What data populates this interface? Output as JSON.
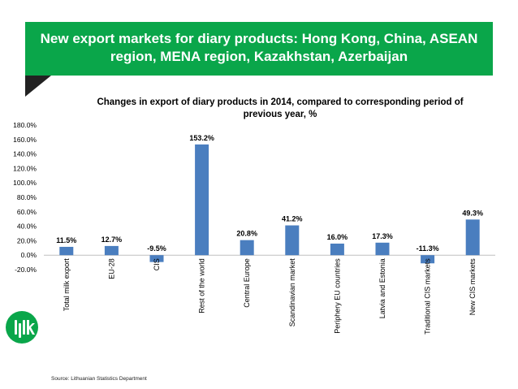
{
  "slide": {
    "title": "New export markets for diary products: Hong Kong, China, ASEAN region, MENA region, Kazakhstan, Azerbaijan",
    "source": "Source: Lithuanian Statistics Department",
    "logo_icon": "lpk-logo-icon",
    "accent_color": "#0aa64a"
  },
  "chart_data": {
    "type": "bar",
    "title": "Changes in export of diary products in 2014, compared to corresponding period of previous year, %",
    "categories": [
      "Total milk export",
      "EU-28",
      "CIS",
      "Rest of the world",
      "Central Europe",
      "Scandinavian market",
      "Periphery EU countries",
      "Latvia and Estonia",
      "Traditional CIS markets",
      "New CIS markets"
    ],
    "values": [
      11.5,
      12.7,
      -9.5,
      153.2,
      20.8,
      41.2,
      16.0,
      17.3,
      -11.3,
      49.3
    ],
    "data_labels": [
      "11.5%",
      "12.7%",
      "-9.5%",
      "153.2%",
      "20.8%",
      "41.2%",
      "16.0%",
      "17.3%",
      "-11.3%",
      "49.3%"
    ],
    "ylim": [
      -20,
      180
    ],
    "yticks": [
      -20,
      0,
      20,
      40,
      60,
      80,
      100,
      120,
      140,
      160,
      180
    ],
    "ytick_labels": [
      "-20.0%",
      "0.0%",
      "20.0%",
      "40.0%",
      "60.0%",
      "80.0%",
      "100.0%",
      "120.0%",
      "140.0%",
      "160.0%",
      "180.0%"
    ],
    "bar_color": "#4a7ebf",
    "xlabel": "",
    "ylabel": "",
    "legend": "none",
    "grid": false
  }
}
